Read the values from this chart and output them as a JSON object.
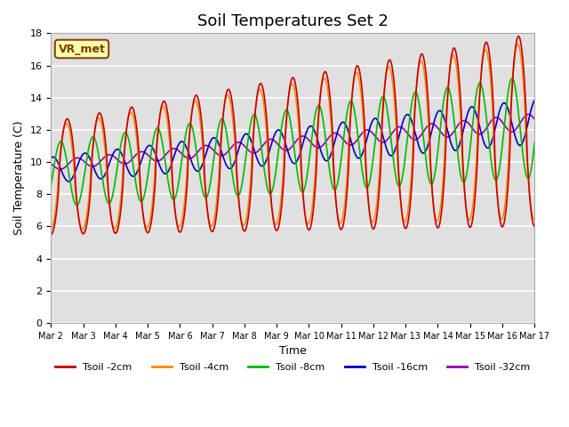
{
  "title": "Soil Temperatures Set 2",
  "xlabel": "Time",
  "ylabel": "Soil Temperature (C)",
  "ylim": [
    0,
    18
  ],
  "yticks": [
    0,
    2,
    4,
    6,
    8,
    10,
    12,
    14,
    16,
    18
  ],
  "x_tick_labels": [
    "Mar 2",
    "Mar 3",
    "Mar 4",
    "Mar 5",
    "Mar 6",
    "Mar 7",
    "Mar 8",
    "Mar 9",
    "Mar 10",
    "Mar 11",
    "Mar 12",
    "Mar 13",
    "Mar 14",
    "Mar 15",
    "Mar 16",
    "Mar 17"
  ],
  "annotation": "VR_met",
  "colors": {
    "2cm": "#cc0000",
    "4cm": "#ff8800",
    "8cm": "#00bb00",
    "16cm": "#0000cc",
    "32cm": "#9900aa"
  },
  "legend": [
    "Tsoil -2cm",
    "Tsoil -4cm",
    "Tsoil -8cm",
    "Tsoil -16cm",
    "Tsoil -32cm"
  ],
  "plot_bg": "#e0e0e0",
  "title_fontsize": 13,
  "axis_fontsize": 9,
  "n_days": 15,
  "points_per_day": 48
}
